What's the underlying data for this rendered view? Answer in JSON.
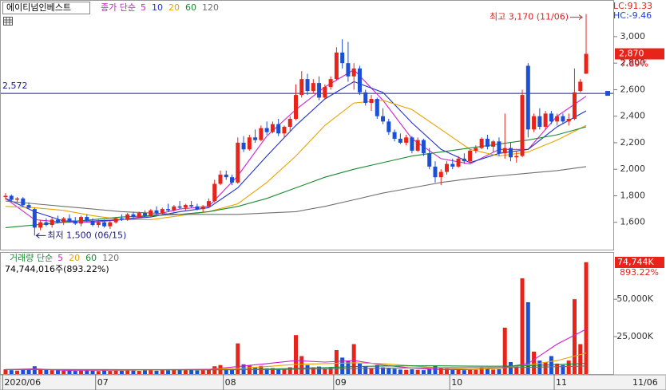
{
  "chart_data": {
    "type": "candlestick",
    "title": "에이티넘인베스트",
    "legend_label": "종가 단순",
    "lc": "LC:91.33",
    "hc": "HC:-9.46",
    "open": [
      1790,
      1800,
      1770,
      1780,
      1730,
      1700,
      1560,
      1600,
      1580,
      1620,
      1600,
      1630,
      1610,
      1590,
      1640,
      1610,
      1580,
      1600,
      1570,
      1600,
      1630,
      1620,
      1660,
      1640,
      1670,
      1650,
      1690,
      1670,
      1700,
      1690,
      1720,
      1710,
      1730,
      1720,
      1700,
      1720,
      1760,
      1890,
      1960,
      1940,
      1900,
      2200,
      2150,
      2240,
      2220,
      2310,
      2280,
      2340,
      2270,
      2320,
      2380,
      2560,
      2680,
      2590,
      2650,
      2540,
      2620,
      2680,
      2880,
      2800,
      2700,
      2760,
      2580,
      2500,
      2530,
      2400,
      2360,
      2280,
      2230,
      2200,
      2240,
      2140,
      2220,
      2120,
      2020,
      1940,
      1980,
      2040,
      2020,
      2080,
      2060,
      2140,
      2160,
      2230,
      2170,
      2210,
      2120,
      2160,
      2090,
      2100,
      2780,
      2300,
      2400,
      2320,
      2420,
      2360,
      2400,
      2360,
      2380,
      2590,
      2720
    ],
    "high": [
      1820,
      1810,
      1790,
      1790,
      1750,
      1710,
      1620,
      1630,
      1640,
      1650,
      1640,
      1660,
      1640,
      1650,
      1660,
      1630,
      1620,
      1620,
      1610,
      1640,
      1660,
      1670,
      1680,
      1680,
      1690,
      1700,
      1720,
      1710,
      1740,
      1730,
      1760,
      1740,
      1760,
      1740,
      1730,
      1780,
      1920,
      1990,
      1990,
      1960,
      2240,
      2250,
      2260,
      2300,
      2330,
      2360,
      2360,
      2380,
      2330,
      2400,
      2640,
      2740,
      2720,
      2680,
      2700,
      2640,
      2700,
      2920,
      2980,
      2960,
      2800,
      2780,
      2600,
      2560,
      2540,
      2460,
      2380,
      2300,
      2270,
      2260,
      2250,
      2240,
      2230,
      2160,
      2060,
      2000,
      2060,
      2080,
      2100,
      2120,
      2150,
      2180,
      2240,
      2260,
      2220,
      2240,
      2420,
      2200,
      2140,
      2600,
      2800,
      2420,
      2460,
      2440,
      2440,
      2420,
      2420,
      2420,
      2760,
      2680,
      3170
    ],
    "low": [
      1770,
      1760,
      1750,
      1720,
      1700,
      1500,
      1540,
      1570,
      1560,
      1590,
      1580,
      1600,
      1580,
      1570,
      1600,
      1570,
      1560,
      1560,
      1550,
      1590,
      1610,
      1610,
      1630,
      1630,
      1640,
      1640,
      1660,
      1660,
      1680,
      1680,
      1700,
      1690,
      1710,
      1690,
      1680,
      1710,
      1750,
      1880,
      1920,
      1880,
      1890,
      2130,
      2140,
      2200,
      2210,
      2260,
      2270,
      2250,
      2240,
      2290,
      2370,
      2540,
      2560,
      2570,
      2520,
      2530,
      2600,
      2670,
      2760,
      2660,
      2600,
      2560,
      2480,
      2440,
      2380,
      2340,
      2260,
      2210,
      2190,
      2180,
      2120,
      2130,
      2100,
      2000,
      1900,
      1880,
      1960,
      2000,
      2010,
      2040,
      2050,
      2120,
      2150,
      2150,
      2130,
      2100,
      2080,
      2060,
      2050,
      2090,
      2240,
      2280,
      2300,
      2300,
      2340,
      2330,
      2340,
      2330,
      2370,
      2580,
      2720
    ],
    "close": [
      1800,
      1770,
      1780,
      1730,
      1710,
      1560,
      1600,
      1580,
      1620,
      1600,
      1630,
      1610,
      1590,
      1640,
      1610,
      1580,
      1600,
      1570,
      1600,
      1630,
      1620,
      1660,
      1640,
      1670,
      1650,
      1690,
      1670,
      1700,
      1690,
      1720,
      1710,
      1730,
      1720,
      1700,
      1720,
      1760,
      1890,
      1960,
      1940,
      1900,
      2200,
      2150,
      2240,
      2220,
      2310,
      2280,
      2340,
      2270,
      2320,
      2380,
      2560,
      2680,
      2590,
      2650,
      2540,
      2620,
      2680,
      2880,
      2800,
      2700,
      2760,
      2580,
      2500,
      2530,
      2400,
      2360,
      2280,
      2230,
      2200,
      2240,
      2140,
      2220,
      2120,
      2020,
      1940,
      1980,
      2040,
      2020,
      2080,
      2060,
      2140,
      2160,
      2230,
      2170,
      2210,
      2120,
      2160,
      2090,
      2100,
      2560,
      2300,
      2400,
      2320,
      2420,
      2360,
      2400,
      2360,
      2380,
      2580,
      2660,
      2870
    ],
    "ma_x": [
      0,
      5,
      10,
      15,
      20,
      25,
      30,
      35,
      40,
      45,
      50,
      55,
      60,
      65,
      70,
      75,
      80,
      85,
      90,
      95,
      100
    ],
    "series": [
      {
        "name": "5",
        "color": "#d020d0",
        "values": [
          1780,
          1620,
          1600,
          1600,
          1620,
          1650,
          1700,
          1720,
          1950,
          2250,
          2450,
          2620,
          2750,
          2520,
          2230,
          2080,
          2040,
          2150,
          2150,
          2400,
          2550
        ]
      },
      {
        "name": "10",
        "color": "#2030d0",
        "values": [
          1780,
          1680,
          1610,
          1610,
          1620,
          1640,
          1680,
          1710,
          1860,
          2100,
          2330,
          2530,
          2660,
          2580,
          2350,
          2150,
          2050,
          2120,
          2150,
          2320,
          2440
        ]
      },
      {
        "name": "20",
        "color": "#e8a400",
        "values": [
          1720,
          1710,
          1690,
          1650,
          1620,
          1620,
          1650,
          1680,
          1740,
          1900,
          2100,
          2330,
          2500,
          2520,
          2450,
          2300,
          2150,
          2100,
          2130,
          2220,
          2330
        ]
      },
      {
        "name": "60",
        "color": "#1a8a30",
        "values": [
          1560,
          1580,
          1600,
          1620,
          1640,
          1650,
          1660,
          1680,
          1720,
          1780,
          1860,
          1940,
          2000,
          2050,
          2100,
          2130,
          2160,
          2190,
          2220,
          2260,
          2320
        ]
      },
      {
        "name": "120",
        "color": "#707070",
        "values": [
          1760,
          1740,
          1720,
          1700,
          1680,
          1670,
          1660,
          1660,
          1660,
          1670,
          1680,
          1720,
          1770,
          1820,
          1860,
          1900,
          1930,
          1950,
          1970,
          1990,
          2020
        ]
      }
    ],
    "ylim": [
      1400,
      3270
    ],
    "yticks": [
      {
        "value": 1600,
        "label": "1,600"
      },
      {
        "value": 1800,
        "label": "1,800"
      },
      {
        "value": 2000,
        "label": "2,000"
      },
      {
        "value": 2200,
        "label": "2,200"
      },
      {
        "value": 2400,
        "label": "2,400"
      },
      {
        "value": 2600,
        "label": "2,600"
      },
      {
        "value": 2800,
        "label": "2,800"
      },
      {
        "value": 3000,
        "label": "3,000"
      }
    ],
    "reference_line": {
      "value": 2572,
      "label": "2,572"
    },
    "high_annotation": "최고 3,170 (11/06)",
    "low_annotation": "최저 1,500 (06/15)",
    "last_price_label": "2,870",
    "change_label": "7.89%",
    "xticks": [
      {
        "value": 0,
        "label": "2020/06"
      },
      {
        "value": 16,
        "label": "07"
      },
      {
        "value": 38,
        "label": "08"
      },
      {
        "value": 57,
        "label": "09"
      },
      {
        "value": 77,
        "label": "10"
      },
      {
        "value": 95,
        "label": "11"
      }
    ],
    "last_date": "11/06",
    "volume": {
      "legend_label": "거래량 단순",
      "summary": "74,744,016주(893.22%)",
      "last_label": "74,744K",
      "ratio_label": "893.22%",
      "values": [
        3200,
        2600,
        2300,
        2800,
        3100,
        5200,
        3500,
        2800,
        2600,
        2400,
        2200,
        2500,
        2100,
        2300,
        2600,
        2200,
        2000,
        2400,
        2100,
        2300,
        2200,
        2500,
        2300,
        2100,
        2400,
        2600,
        2200,
        2800,
        2500,
        2700,
        3000,
        2600,
        2800,
        2400,
        2600,
        3200,
        5200,
        6000,
        3800,
        3200,
        20500,
        6500,
        5800,
        4200,
        5500,
        3800,
        4000,
        3500,
        3200,
        4500,
        26000,
        12000,
        6000,
        4500,
        5000,
        3800,
        4200,
        16000,
        11000,
        9000,
        20000,
        7000,
        5000,
        4000,
        6000,
        4500,
        4200,
        3500,
        3000,
        2800,
        3200,
        2800,
        2600,
        3500,
        5500,
        4000,
        3500,
        2800,
        3000,
        2600,
        3200,
        2800,
        4000,
        3500,
        3000,
        3200,
        31000,
        8000,
        5000,
        64000,
        48000,
        15000,
        9000,
        8000,
        12000,
        7000,
        6000,
        9000,
        50000,
        20000,
        74744
      ],
      "ylim": [
        0,
        81000
      ],
      "yticks": [
        {
          "value": 25000,
          "label": "25,000K"
        },
        {
          "value": 50000,
          "label": "50,000K"
        }
      ],
      "series": [
        {
          "name": "5",
          "color": "#d020d0",
          "values": [
            3000,
            3500,
            2500,
            2500,
            2500,
            2800,
            3000,
            3200,
            5000,
            7000,
            9000,
            8000,
            9000,
            6000,
            4000,
            3000,
            3000,
            4000,
            7000,
            20000,
            30000
          ]
        },
        {
          "name": "20",
          "color": "#e8a400",
          "values": [
            3000,
            3000,
            3000,
            2800,
            2700,
            2800,
            2900,
            3000,
            3800,
            5000,
            6500,
            7000,
            7500,
            7000,
            5500,
            4000,
            3200,
            3800,
            6000,
            9000,
            14000
          ]
        },
        {
          "name": "60",
          "color": "#1a8a30",
          "values": [
            3000,
            3000,
            3000,
            3000,
            2900,
            2900,
            2800,
            2800,
            3000,
            3300,
            3800,
            4300,
            5000,
            5400,
            5500,
            5500,
            5300,
            5200,
            5600,
            6300,
            7200
          ]
        },
        {
          "name": "120",
          "color": "#707070",
          "values": [
            3000,
            3000,
            3000,
            3000,
            3000,
            3000,
            3000,
            2900,
            2900,
            3000,
            3200,
            3400,
            3700,
            3900,
            4100,
            4200,
            4300,
            4300,
            4500,
            4900,
            5400
          ]
        }
      ]
    }
  }
}
